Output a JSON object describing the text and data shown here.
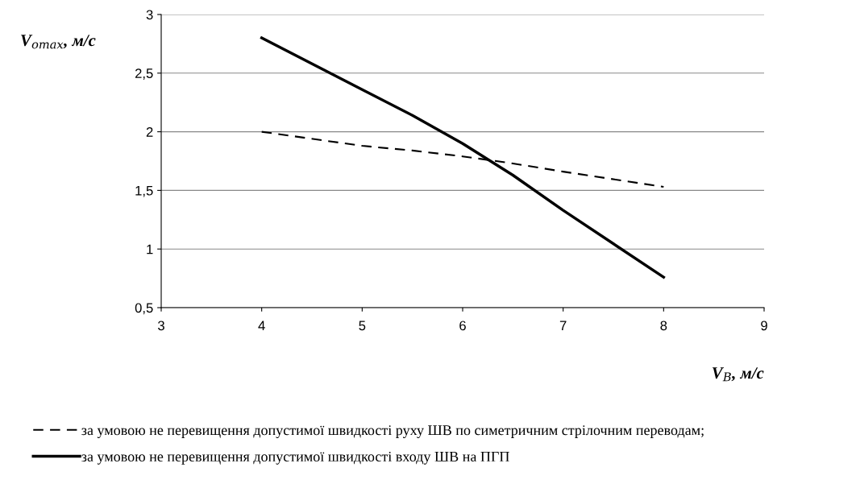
{
  "chart_data": {
    "type": "line",
    "xlabel": "V$_{В}$, м/с",
    "ylabel": "V$_{omax}$, м/с",
    "x": [
      4,
      5,
      5.5,
      6,
      6.5,
      7,
      8
    ],
    "series": [
      {
        "name": "за умовою не перевищення допустимої швидкості руху ШВ по симетричним стрілочним переводам;",
        "color": "#000000",
        "line_style": "dashed",
        "values": [
          2.0,
          1.88,
          1.84,
          1.79,
          1.73,
          1.66,
          1.53
        ]
      },
      {
        "name": "за умовою не перевищення допустимої швидкості входу ШВ на ПГП",
        "color": "#000000",
        "line_style": "solid",
        "values": [
          2.8,
          2.36,
          2.14,
          1.9,
          1.63,
          1.33,
          0.76
        ]
      }
    ],
    "xlim": [
      3,
      9
    ],
    "xticks": [
      3,
      4,
      5,
      6,
      7,
      8,
      9
    ],
    "ylim": [
      0.5,
      3
    ],
    "yticks": [
      {
        "value": 0.5,
        "label": "0,5"
      },
      1,
      {
        "value": 1.5,
        "label": "1,5"
      },
      2,
      {
        "value": 2.5,
        "label": "2,5"
      },
      3
    ],
    "grid": "y",
    "legend": "bottom",
    "marker": "none"
  }
}
